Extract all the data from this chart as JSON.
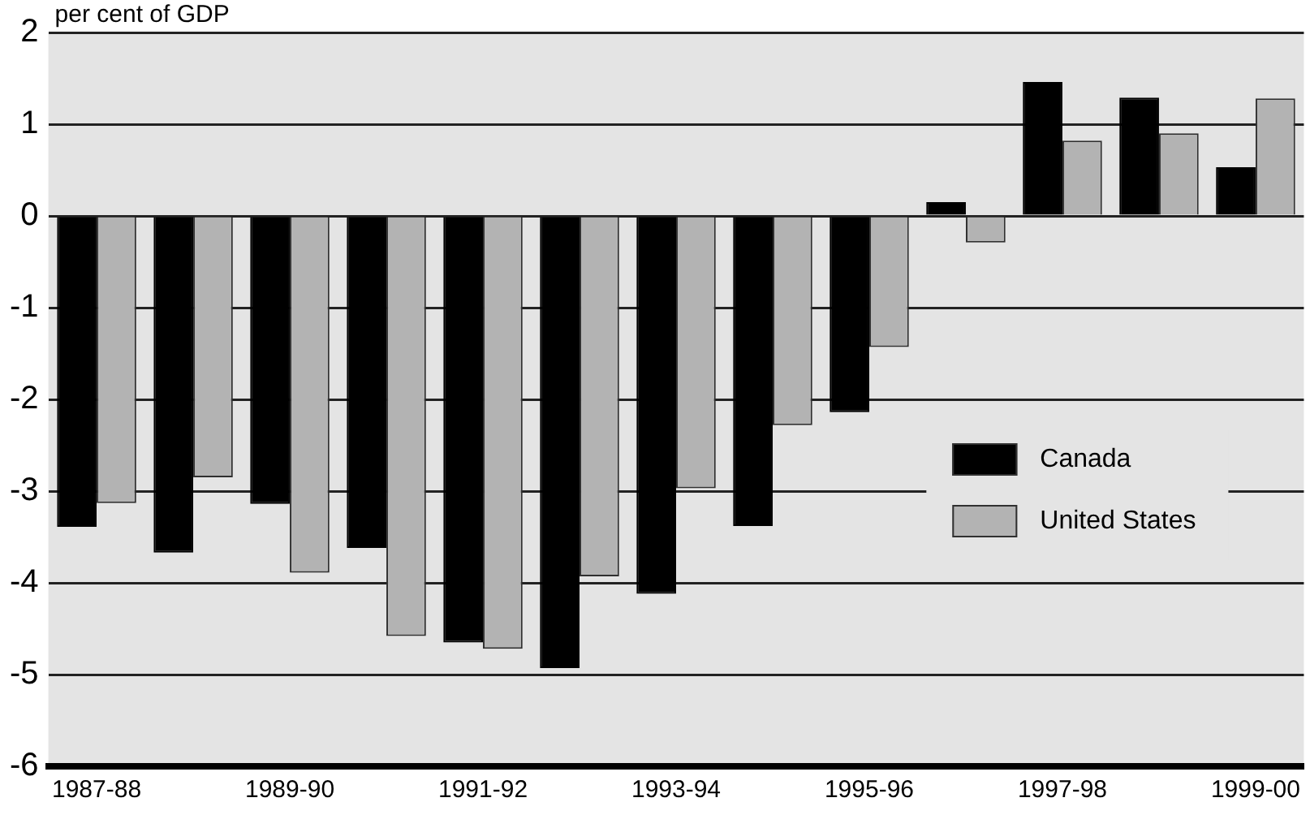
{
  "chart_data": {
    "type": "bar",
    "ylabel": "per cent of GDP",
    "categories": [
      "1987-88",
      null,
      "1989-90",
      null,
      "1991-92",
      null,
      "1993-94",
      null,
      "1995-96",
      null,
      "1997-98",
      null,
      "1999-00"
    ],
    "series": [
      {
        "name": "Canada",
        "color": "#000000",
        "values": [
          -3.39,
          -3.67,
          -3.14,
          -3.62,
          -4.65,
          -4.93,
          -4.12,
          -3.38,
          -2.14,
          0.15,
          1.46,
          1.29,
          0.53
        ]
      },
      {
        "name": "United States",
        "color": "#b3b3b3",
        "values": [
          -3.13,
          -2.85,
          -3.89,
          -4.58,
          -4.72,
          -3.93,
          -2.97,
          -2.28,
          -1.43,
          -0.29,
          0.82,
          0.9,
          1.28
        ]
      }
    ],
    "ylim": [
      -6,
      2
    ],
    "yticks": [
      -6,
      -5,
      -4,
      -3,
      -2,
      -1,
      0,
      1,
      2
    ],
    "grid": "y",
    "legend": "right"
  }
}
